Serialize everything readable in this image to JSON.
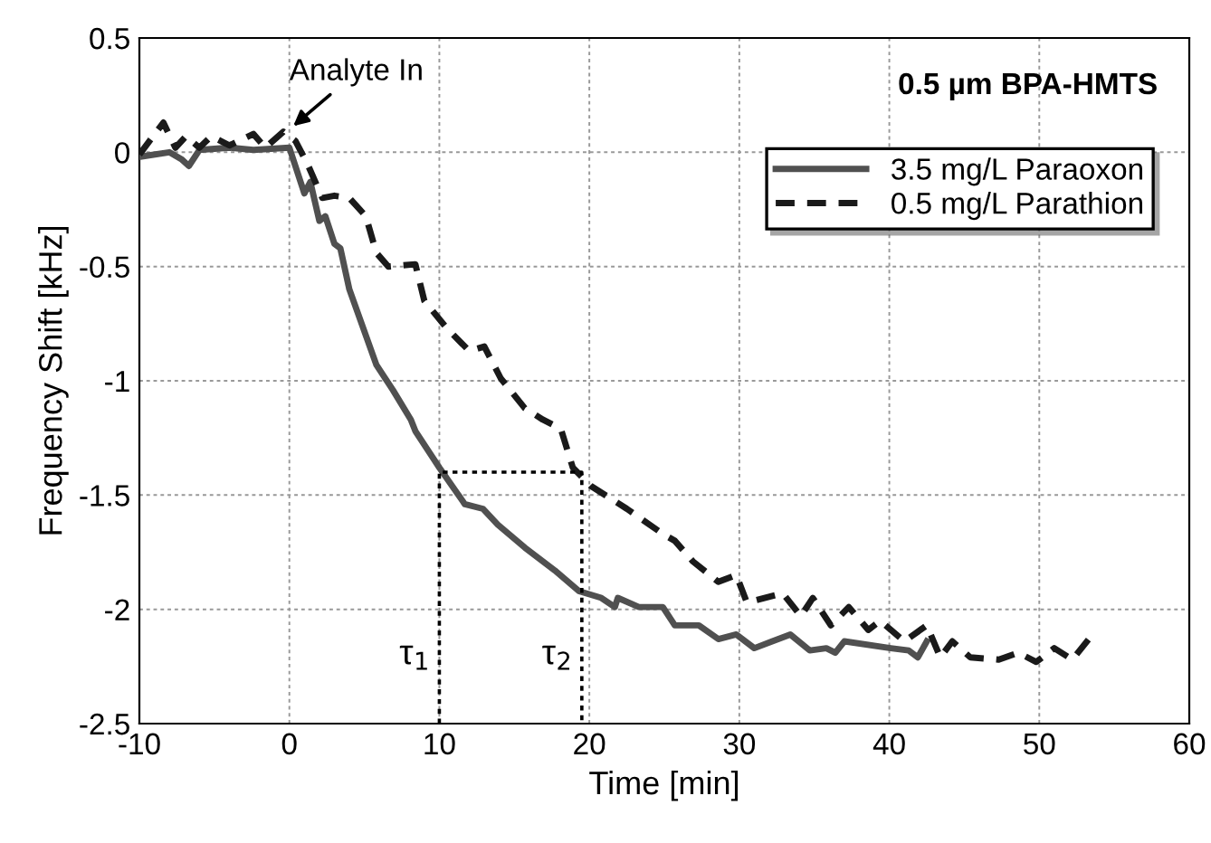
{
  "chart_data": {
    "type": "line",
    "xlabel": "Time [min]",
    "ylabel": "Frequency Shift [kHz]",
    "xlim": [
      -10,
      60
    ],
    "xticks": [
      -10,
      0,
      10,
      20,
      30,
      40,
      50,
      60
    ],
    "ylim": [
      -2.5,
      0.5
    ],
    "yticks": [
      -2.5,
      -2,
      -1.5,
      -1,
      -0.5,
      0,
      0.5
    ],
    "grid": true,
    "legend": "right",
    "series": [
      {
        "name": "3.5 mg/L Paraoxon",
        "color": "#505050",
        "line_style": "solid",
        "x": [
          -10,
          -8.0,
          -7.2,
          -6.7,
          -6.0,
          -4.0,
          -2.4,
          0,
          1.0,
          1.4,
          2.0,
          2.4,
          3.0,
          3.4,
          4.0,
          5.8,
          6.9,
          8.1,
          8.4,
          10.0,
          11.7,
          12.9,
          13.9,
          15.7,
          17.7,
          19.3,
          20.8,
          21.7,
          21.9,
          23.3,
          24.9,
          25.7,
          27.3,
          28.6,
          29.8,
          31.0,
          32.2,
          33.4,
          34.7,
          35.8,
          36.4,
          37.0,
          40.1,
          41.3,
          41.9,
          42.5
        ],
        "values": [
          -0.02,
          0,
          -0.03,
          -0.06,
          0.01,
          0.02,
          0.01,
          0.02,
          -0.18,
          -0.13,
          -0.3,
          -0.28,
          -0.4,
          -0.42,
          -0.6,
          -0.93,
          -1.04,
          -1.17,
          -1.22,
          -1.38,
          -1.54,
          -1.56,
          -1.63,
          -1.73,
          -1.83,
          -1.92,
          -1.95,
          -1.99,
          -1.95,
          -1.99,
          -1.99,
          -2.07,
          -2.07,
          -2.13,
          -2.11,
          -2.17,
          -2.14,
          -2.11,
          -2.18,
          -2.17,
          -2.19,
          -2.14,
          -2.17,
          -2.18,
          -2.21,
          -2.14
        ]
      },
      {
        "name": "0.5 mg/L Parathion",
        "color": "#1a1a1a",
        "line_style": "dashed",
        "x": [
          -10,
          -8.4,
          -7.6,
          -6.9,
          -6.0,
          -5.2,
          -4.0,
          -2.4,
          -1.6,
          -0.4,
          0.4,
          1.2,
          2.2,
          3.0,
          4.0,
          5.1,
          5.8,
          6.6,
          8.4,
          9.0,
          10.5,
          12.0,
          13.0,
          14.1,
          15.7,
          16.9,
          18.1,
          18.9,
          20.1,
          21.3,
          22.5,
          24.9,
          25.7,
          26.9,
          28.6,
          29.8,
          30.5,
          32.9,
          34.1,
          34.9,
          36.1,
          37.3,
          38.6,
          39.4,
          41.0,
          42.5,
          43.4,
          44.2,
          45.4,
          47.3,
          48.6,
          49.8,
          51.0,
          52.2,
          53.3
        ],
        "values": [
          -0.01,
          0.13,
          0.02,
          0.07,
          0.02,
          0.07,
          0.03,
          0.08,
          0.02,
          0.09,
          0.05,
          -0.05,
          -0.2,
          -0.19,
          -0.2,
          -0.28,
          -0.44,
          -0.5,
          -0.49,
          -0.65,
          -0.77,
          -0.87,
          -0.85,
          -0.99,
          -1.12,
          -1.17,
          -1.21,
          -1.38,
          -1.46,
          -1.51,
          -1.56,
          -1.67,
          -1.7,
          -1.79,
          -1.88,
          -1.85,
          -1.97,
          -1.93,
          -2.03,
          -1.95,
          -2.07,
          -1.99,
          -2.09,
          -2.05,
          -2.14,
          -2.07,
          -2.21,
          -2.14,
          -2.21,
          -2.22,
          -2.19,
          -2.23,
          -2.17,
          -2.22,
          -2.13
        ]
      },
      {
        "color": "#000000",
        "line_style": "dotted",
        "x": [
          10,
          10,
          19.5,
          19.5
        ],
        "values": [
          -2.5,
          -1.4,
          -1.4,
          -2.5
        ]
      }
    ],
    "annotations": [
      {
        "text": "Analyte In",
        "x": 0,
        "y": 0.1
      },
      "0.5 µm BPA-HMTS",
      {
        "text": "τ$_{1}$",
        "x": 10,
        "y": -2.2
      },
      {
        "text": "τ$_{2}$",
        "x": 19.5,
        "y": -2.2
      }
    ]
  }
}
